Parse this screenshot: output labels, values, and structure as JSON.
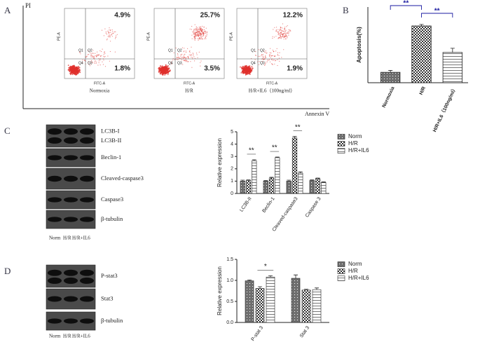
{
  "panel_letters": [
    "A",
    "B",
    "C",
    "D"
  ],
  "panel_a": {
    "y_label": "PI",
    "x_label": "Annexin V",
    "plots": [
      {
        "caption": "Normoxia",
        "y_axis": "PE-A",
        "x_axis": "FITC-A",
        "quadrants": [
          "Q1",
          "Q2",
          "Q3",
          "Q4"
        ],
        "upper_right": "4.9%",
        "lower_right": "1.8%"
      },
      {
        "caption": "H/R",
        "y_axis": "PE-A",
        "x_axis": "FITC-A",
        "quadrants": [
          "Q1",
          "Q2",
          "Q3",
          "Q4"
        ],
        "upper_right": "25.7%",
        "lower_right": "3.5%"
      },
      {
        "caption": "H/R+IL6（100ng/ml）",
        "y_axis": "PE-A",
        "x_axis": "FITC-A",
        "quadrants": [
          "Q1",
          "Q2",
          "Q3",
          "Q4"
        ],
        "upper_right": "12.2%",
        "lower_right": "1.9%"
      }
    ]
  },
  "blots_c": {
    "bands": [
      "LC3B-I",
      "LC3B-II",
      "Beclin-1",
      "Cleaved-caspase3",
      "Caspase3",
      "β-tubulin"
    ],
    "lanes": [
      "Norm",
      "H/R",
      "H/R+IL6"
    ]
  },
  "blots_d": {
    "bands": [
      "P-stat3",
      "Stat3",
      "β-tubulin"
    ],
    "lanes": [
      "Norm",
      "H/R",
      "H/R+IL6"
    ]
  },
  "chart_data": [
    {
      "type": "bar",
      "ylabel": "Apoptosis(%)",
      "categories": [
        "Normoxia",
        "H/R",
        "H/R+IL6（100ng/ml）"
      ],
      "values": [
        5.5,
        30,
        16
      ],
      "errors": [
        1,
        0.8,
        2.2
      ],
      "colors": [
        "#555555",
        "#333333",
        "#777777"
      ],
      "ylim": [
        0,
        40
      ],
      "annotations": [
        "**",
        "**"
      ],
      "annotation_color": "#1a1aa0"
    },
    {
      "type": "grouped-bar",
      "ylabel": "Relative expression",
      "categories": [
        "LC3B-II",
        "Beclin-1",
        "Cleaved-caspase3",
        "Caspase 3"
      ],
      "series": [
        {
          "name": "Norm",
          "color": "#555555",
          "values": [
            1.0,
            1.0,
            1.0,
            1.05
          ],
          "errors": [
            0.08,
            0.05,
            0.08,
            0.05
          ]
        },
        {
          "name": "H/R",
          "color": "#333333",
          "values": [
            1.05,
            1.25,
            4.5,
            1.2
          ],
          "errors": [
            0.05,
            0.06,
            0.12,
            0.05
          ]
        },
        {
          "name": "H/R+IL6",
          "color": "#777777",
          "values": [
            2.65,
            2.9,
            1.65,
            0.9
          ],
          "errors": [
            0.08,
            0.05,
            0.1,
            0.04
          ]
        }
      ],
      "ylim": [
        0,
        5
      ],
      "yticks": [
        0,
        1,
        2,
        3,
        4,
        5
      ],
      "annotations": [
        "**",
        "**",
        "**"
      ]
    },
    {
      "type": "grouped-bar",
      "ylabel": "Relative expression",
      "categories": [
        "P-stat 3",
        "Stat 3"
      ],
      "series": [
        {
          "name": "Norm",
          "color": "#555555",
          "values": [
            0.99,
            1.05
          ],
          "errors": [
            0.02,
            0.08
          ]
        },
        {
          "name": "H/R",
          "color": "#333333",
          "values": [
            0.81,
            0.77
          ],
          "errors": [
            0.04,
            0.02
          ]
        },
        {
          "name": "H/R+IL6",
          "color": "#777777",
          "values": [
            1.08,
            0.78
          ],
          "errors": [
            0.03,
            0.04
          ]
        }
      ],
      "ylim": [
        0,
        1.5
      ],
      "yticks": [
        {
          "value": 0,
          "label": "0.0"
        },
        0.5,
        {
          "value": 1,
          "label": "1.0"
        },
        1.5
      ],
      "annotations": [
        "*"
      ]
    }
  ]
}
